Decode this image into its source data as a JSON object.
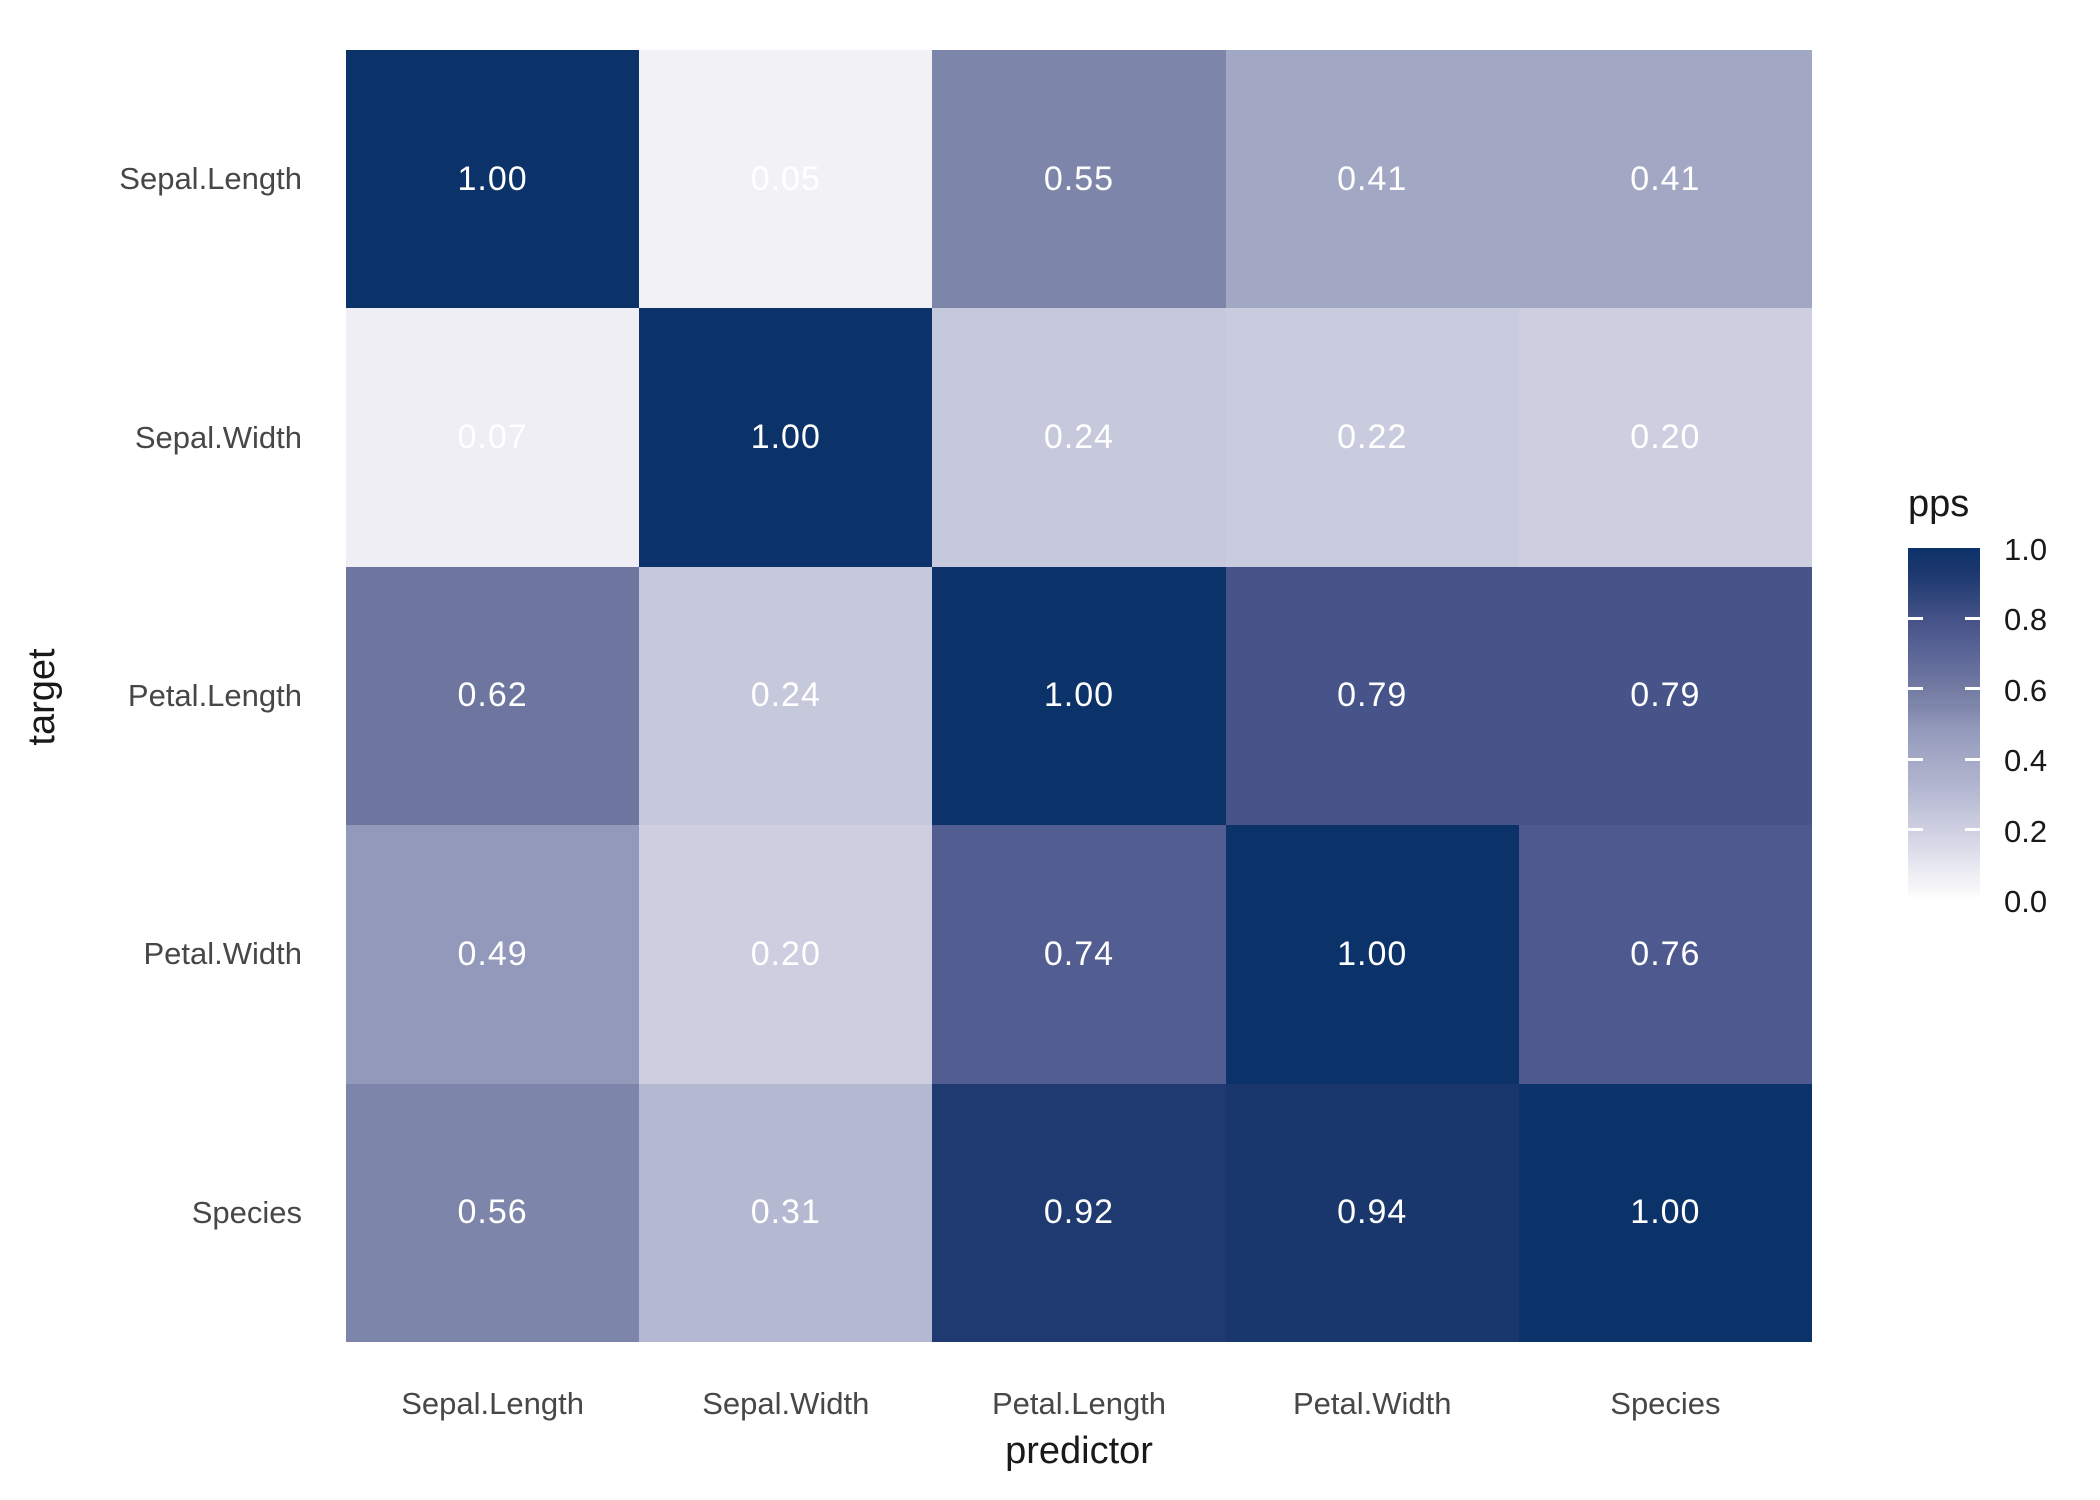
{
  "figure": {
    "background": "#ffffff"
  },
  "chart_data": {
    "type": "heatmap",
    "title": "",
    "xlabel": "predictor",
    "ylabel": "target",
    "x_categories": [
      "Sepal.Length",
      "Sepal.Width",
      "Petal.Length",
      "Petal.Width",
      "Species"
    ],
    "y_categories": [
      "Sepal.Length",
      "Sepal.Width",
      "Petal.Length",
      "Petal.Width",
      "Species"
    ],
    "values": [
      [
        1.0,
        0.05,
        0.55,
        0.41,
        0.41
      ],
      [
        0.07,
        1.0,
        0.24,
        0.22,
        0.2
      ],
      [
        0.62,
        0.24,
        1.0,
        0.79,
        0.79
      ],
      [
        0.49,
        0.2,
        0.74,
        1.0,
        0.76
      ],
      [
        0.56,
        0.31,
        0.92,
        0.94,
        1.0
      ]
    ],
    "cell_label_decimals": 2,
    "legend": {
      "title": "pps",
      "position": "right",
      "ticks": [
        "1.0",
        "0.8",
        "0.6",
        "0.4",
        "0.2",
        "0.0"
      ],
      "range": [
        0.0,
        1.0
      ]
    },
    "grid": "off",
    "colormap_anchors": [
      [
        0.0,
        "#ffffff"
      ],
      [
        0.05,
        "#f2f2f6"
      ],
      [
        0.07,
        "#eeeef4"
      ],
      [
        0.2,
        "#cdcfe1"
      ],
      [
        0.22,
        "#c9cbde"
      ],
      [
        0.24,
        "#c6c8dc"
      ],
      [
        0.31,
        "#b4b8d1"
      ],
      [
        0.41,
        "#a2a7c4"
      ],
      [
        0.49,
        "#9299bb"
      ],
      [
        0.55,
        "#7e85aa"
      ],
      [
        0.56,
        "#7d85ab"
      ],
      [
        0.62,
        "#6e76a0"
      ],
      [
        0.74,
        "#525e92"
      ],
      [
        0.76,
        "#4e5a8f"
      ],
      [
        0.79,
        "#475489"
      ],
      [
        0.92,
        "#1e3a70"
      ],
      [
        0.94,
        "#1a376d"
      ],
      [
        1.0,
        "#0b3269"
      ]
    ],
    "colors": {
      "cell_text": "#ffffff",
      "axis_text": "#474747",
      "axis_title": "#191919",
      "legend_high": "#0b3269",
      "legend_low": "#ffffff"
    }
  }
}
